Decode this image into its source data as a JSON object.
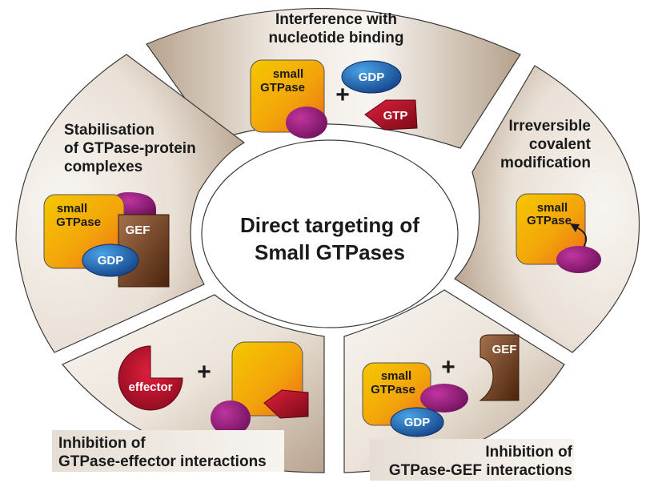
{
  "center": {
    "title_line1": "Direct targeting of",
    "title_line2": "Small GTPases"
  },
  "segments": {
    "top": {
      "label_line1": "Interference with",
      "label_line2": "nucleotide binding",
      "gtpase_line1": "small",
      "gtpase_line2": "GTPase",
      "plus": "+",
      "gdp": "GDP",
      "gtp": "GTP"
    },
    "right": {
      "label_line1": "Irreversible",
      "label_line2": "covalent",
      "label_line3": "modification",
      "gtpase_line1": "small",
      "gtpase_line2": "GTPase"
    },
    "bottom_right": {
      "label_line1": "Inhibition of",
      "label_line2": "GTPase-GEF interactions",
      "gtpase_line1": "small",
      "gtpase_line2": "GTPase",
      "gdp": "GDP",
      "plus": "+",
      "gef": "GEF"
    },
    "bottom_left": {
      "label_line1": "Inhibition of",
      "label_line2": "GTPase-effector interactions",
      "effector": "effector",
      "plus": "+"
    },
    "left": {
      "label_line1": "Stabilisation",
      "label_line2": "of GTPase-protein",
      "label_line3": "complexes",
      "gtpase_line1": "small",
      "gtpase_line2": "GTPase",
      "gef": "GEF",
      "gdp": "GDP"
    }
  },
  "colors": {
    "segment_fill_dark": "#b9a692",
    "segment_fill_light": "#f7f3ee",
    "gtpase_yellow": "#f2c200",
    "gtpase_orange": "#f07a14",
    "magenta": "#8c1a78",
    "gdp_blue": "#1f66b0",
    "gtp_red": "#c8102e",
    "gef_brown": "#6b3a1e"
  }
}
